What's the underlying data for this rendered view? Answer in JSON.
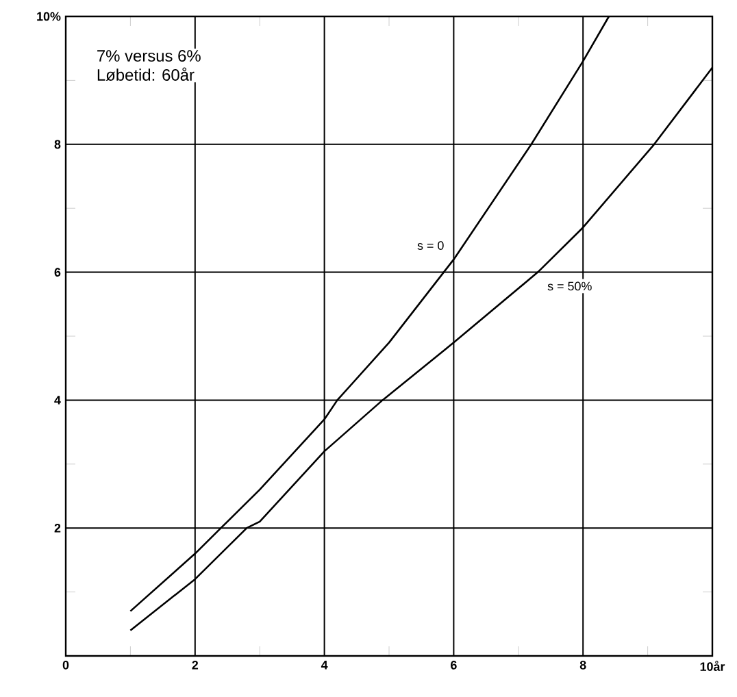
{
  "chart_data": {
    "type": "line",
    "annotations": [
      "7% versus 6%",
      "Løbetid: 60år"
    ],
    "series": [
      {
        "name": "s = 0",
        "color": "#000000",
        "x": [
          1,
          2,
          2.4,
          3,
          4,
          4.2,
          5,
          6,
          7.2,
          8,
          8.4
        ],
        "values": [
          0.7,
          1.6,
          2,
          2.6,
          3.7,
          4,
          4.9,
          6.2,
          8,
          9.3,
          10
        ]
      },
      {
        "name": "s = 50%",
        "color": "#000000",
        "x": [
          1,
          2,
          2.8,
          3,
          4,
          4.9,
          6,
          7.3,
          8,
          9.1,
          10
        ],
        "values": [
          0.4,
          1.2,
          2,
          2.1,
          3.2,
          4,
          4.9,
          6,
          6.7,
          8,
          9.2
        ]
      }
    ],
    "xlim": [
      0,
      10
    ],
    "ylim": [
      0,
      10
    ],
    "xticks": [
      0,
      2,
      4,
      6,
      8,
      {
        "value": 10,
        "label": "10år"
      }
    ],
    "yticks": [
      {
        "value": 0,
        "label": null
      },
      2,
      4,
      6,
      8,
      {
        "value": 10,
        "label": "10%"
      }
    ],
    "grid": true,
    "legend": false,
    "marker": "none",
    "line_style": "solid"
  }
}
